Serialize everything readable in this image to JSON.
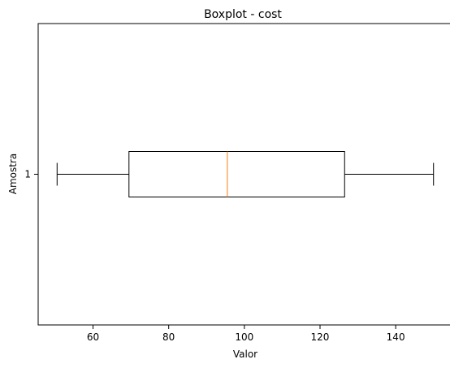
{
  "chart_data": {
    "type": "boxplot",
    "title": "Boxplot - cost",
    "xlabel": "Valor",
    "ylabel": "Amostra",
    "orientation": "horizontal",
    "xlim": [
      45.5,
      155.0
    ],
    "xticks": [
      60,
      80,
      100,
      120,
      140
    ],
    "yticks": [
      "1"
    ],
    "grid": false,
    "boxes": [
      {
        "label": "1",
        "whisker_low": 50.5,
        "q1": 69.5,
        "median": 95.5,
        "q3": 126.5,
        "whisker_high": 150.0
      }
    ],
    "colors": {
      "box": "#000000",
      "median": "#ff7f0e",
      "axes": "#000000",
      "background": "#ffffff"
    }
  }
}
